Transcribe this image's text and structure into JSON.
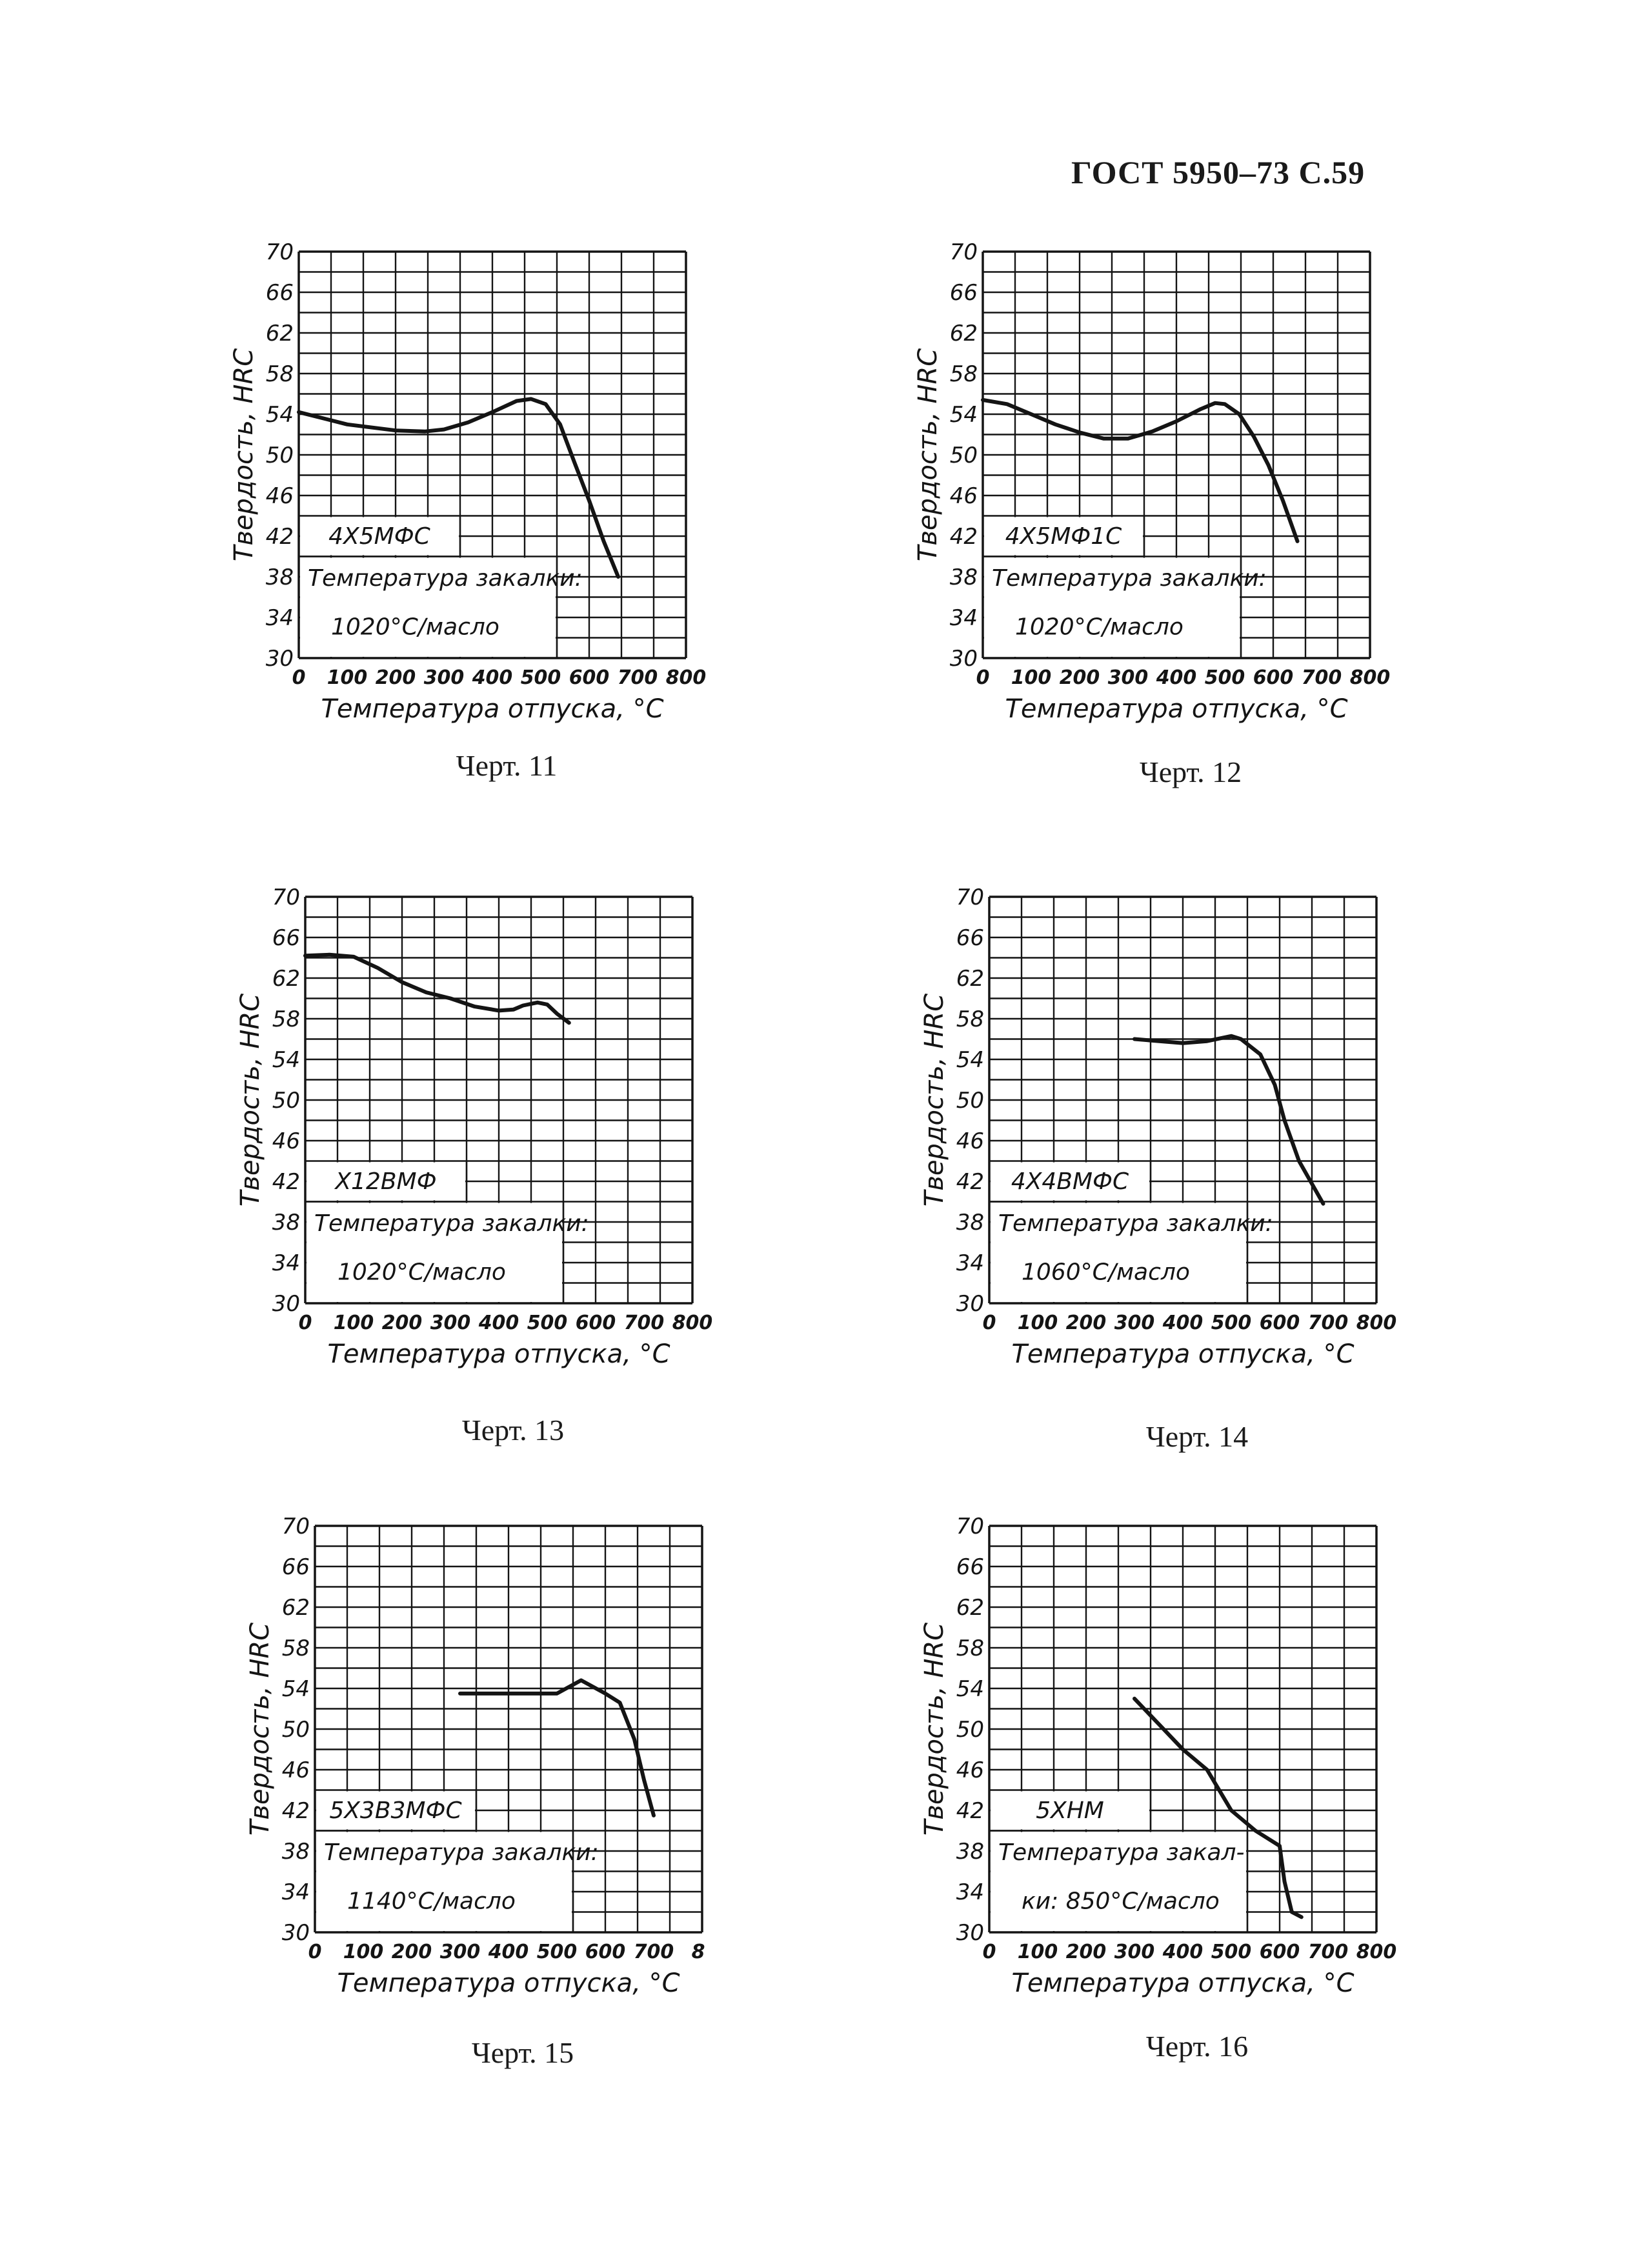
{
  "header": {
    "title": "ГОСТ 5950–73 С.59"
  },
  "chart_data": [
    {
      "type": "line",
      "caption": "Черт. 11",
      "steel_grade": "4Х5МФС",
      "note_line1": "Температура закалки:",
      "note_line2": "1020°С/масло",
      "xlabel": "Температура отпуска, °С",
      "ylabel": "Твердость, HRC",
      "xlim": [
        0,
        800
      ],
      "ylim": [
        30,
        70
      ],
      "xticks": [
        0,
        100,
        200,
        300,
        400,
        500,
        600,
        700,
        800
      ],
      "yticks": [
        30,
        34,
        38,
        42,
        46,
        50,
        54,
        58,
        62,
        66,
        70
      ],
      "grid": true,
      "series": [
        {
          "x": [
            0,
            100,
            200,
            260,
            300,
            350,
            400,
            450,
            480,
            510,
            540,
            570,
            600,
            630,
            660
          ],
          "y": [
            54.2,
            53.0,
            52.4,
            52.3,
            52.5,
            53.2,
            54.2,
            55.3,
            55.5,
            55.0,
            53.0,
            49.2,
            45.5,
            41.5,
            38.0
          ]
        }
      ]
    },
    {
      "type": "line",
      "caption": "Черт. 12",
      "steel_grade": "4Х5МФ1С",
      "note_line1": "Температура закалки:",
      "note_line2": "1020°С/масло",
      "xlabel": "Температура отпуска, °С",
      "ylabel": "Твердость, HRC",
      "xlim": [
        0,
        800
      ],
      "ylim": [
        30,
        70
      ],
      "xticks": [
        0,
        100,
        200,
        300,
        400,
        500,
        600,
        700,
        800
      ],
      "yticks": [
        30,
        34,
        38,
        42,
        46,
        50,
        54,
        58,
        62,
        66,
        70
      ],
      "grid": true,
      "series": [
        {
          "x": [
            0,
            50,
            100,
            150,
            200,
            250,
            300,
            350,
            400,
            450,
            480,
            500,
            530,
            560,
            590,
            620,
            650
          ],
          "y": [
            55.4,
            55.0,
            54.0,
            53.0,
            52.2,
            51.6,
            51.6,
            52.3,
            53.3,
            54.5,
            55.1,
            55.0,
            54.0,
            51.8,
            49.0,
            45.5,
            41.5
          ]
        }
      ]
    },
    {
      "type": "line",
      "caption": "Черт. 13",
      "steel_grade": "Х12ВМФ",
      "note_line1": "Температура закалки:",
      "note_line2": "1020°С/масло",
      "xlabel": "Температура отпуска, °С",
      "ylabel": "Твердость, HRC",
      "xlim": [
        0,
        800
      ],
      "ylim": [
        30,
        70
      ],
      "xticks": [
        0,
        100,
        200,
        300,
        400,
        500,
        600,
        700,
        800
      ],
      "yticks": [
        30,
        34,
        38,
        42,
        46,
        50,
        54,
        58,
        62,
        66,
        70
      ],
      "grid": true,
      "series": [
        {
          "x": [
            0,
            50,
            100,
            150,
            200,
            250,
            300,
            350,
            400,
            430,
            450,
            480,
            500,
            520,
            545
          ],
          "y": [
            64.2,
            64.3,
            64.1,
            63.0,
            61.6,
            60.6,
            60.0,
            59.2,
            58.8,
            58.9,
            59.3,
            59.6,
            59.4,
            58.5,
            57.6
          ]
        }
      ]
    },
    {
      "type": "line",
      "caption": "Черт. 14",
      "steel_grade": "4Х4ВМФС",
      "note_line1": "Температура закалки:",
      "note_line2": "1060°С/масло",
      "xlabel": "Температура отпуска, °С",
      "ylabel": "Твердость, HRC",
      "xlim": [
        0,
        800
      ],
      "ylim": [
        30,
        70
      ],
      "xticks": [
        0,
        100,
        200,
        300,
        400,
        500,
        600,
        700,
        800
      ],
      "yticks": [
        30,
        34,
        38,
        42,
        46,
        50,
        54,
        58,
        62,
        66,
        70
      ],
      "grid": true,
      "series": [
        {
          "x": [
            300,
            400,
            450,
            500,
            520,
            560,
            590,
            610,
            640,
            690
          ],
          "y": [
            56.0,
            55.6,
            55.8,
            56.3,
            56.0,
            54.5,
            51.5,
            48.0,
            44.0,
            39.8
          ]
        }
      ]
    },
    {
      "type": "line",
      "caption": "Черт. 15",
      "steel_grade": "5Х3В3МФС",
      "note_line1": "Температура закалки:",
      "note_line2": "1140°С/масло",
      "xlabel": "Температура отпуска, °С",
      "ylabel": "Твердость, HRC",
      "xlim": [
        0,
        800
      ],
      "ylim": [
        30,
        70
      ],
      "xticks": [
        0,
        100,
        200,
        300,
        400,
        500,
        600,
        700
      ],
      "xticks_partial": "8",
      "yticks": [
        30,
        34,
        38,
        42,
        46,
        50,
        54,
        58,
        62,
        66,
        70
      ],
      "grid": true,
      "series": [
        {
          "x": [
            300,
            400,
            500,
            550,
            600,
            630,
            660,
            680,
            700
          ],
          "y": [
            53.5,
            53.5,
            53.5,
            54.8,
            53.5,
            52.6,
            49.0,
            45.0,
            41.5
          ]
        }
      ]
    },
    {
      "type": "line",
      "caption": "Черт. 16",
      "steel_grade": "5ХНМ",
      "note_line1": "Температура закал-",
      "note_line2": "ки: 850°С/масло",
      "xlabel": "Температура отпуска, °С",
      "ylabel": "Твердость, HRC",
      "xlim": [
        0,
        800
      ],
      "ylim": [
        30,
        70
      ],
      "xticks": [
        0,
        100,
        200,
        300,
        400,
        500,
        600,
        700,
        800
      ],
      "yticks": [
        30,
        34,
        38,
        42,
        46,
        50,
        54,
        58,
        62,
        66,
        70
      ],
      "grid": true,
      "series": [
        {
          "x": [
            300,
            350,
            400,
            450,
            500,
            550,
            600,
            610,
            625,
            645
          ],
          "y": [
            53.0,
            50.5,
            48.0,
            46.0,
            42.0,
            40.0,
            38.5,
            35.0,
            32.0,
            31.5
          ]
        }
      ]
    }
  ]
}
